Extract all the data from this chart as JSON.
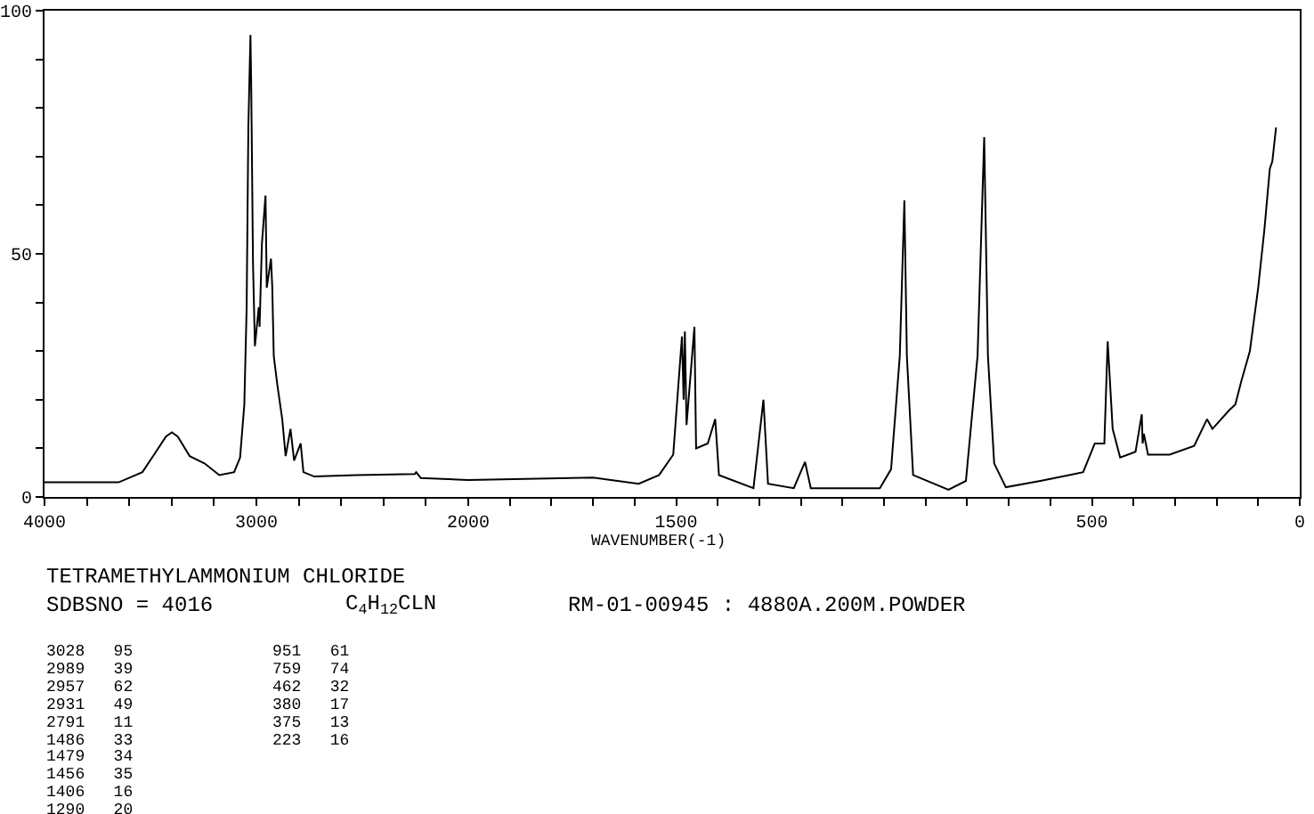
{
  "chart_data": [
    {
      "type": "line",
      "title": "TETRAMETHYLAMMONIUM CHLORIDE",
      "annotations": [
        "SDBSNO = 4016",
        "C$_{4}$H$_{12}$CLN",
        "RM-01-00945 : 4880A.200M.POWDER",
        "3028   95",
        "2989   39",
        "2957   62",
        "2931   49",
        "2791   11",
        "1486   33",
        "1479   34",
        "1456   35",
        "1406   16",
        "1290   20",
        "951   61",
        "759   74",
        "462   32",
        "380   17",
        "375   13",
        "223   16"
      ],
      "xlim": [
        4000,
        2000
      ],
      "xticks": [
        4000,
        {
          "value": 3800,
          "label": null
        },
        {
          "value": 3600,
          "label": null
        },
        {
          "value": 3400,
          "label": null
        },
        {
          "value": 3200,
          "label": null
        },
        3000,
        {
          "value": 2800,
          "label": null
        },
        {
          "value": 2600,
          "label": null
        },
        {
          "value": 2400,
          "label": null
        },
        {
          "value": 2200,
          "label": null
        },
        2000
      ],
      "ylim": [
        0,
        100
      ],
      "yticks": [
        0,
        {
          "value": 10,
          "label": null
        },
        {
          "value": 20,
          "label": null
        },
        {
          "value": 30,
          "label": null
        },
        {
          "value": 40,
          "label": null
        },
        50,
        {
          "value": 60,
          "label": null
        },
        {
          "value": 70,
          "label": null
        },
        {
          "value": 80,
          "label": null
        },
        {
          "value": 90,
          "label": null
        },
        100
      ],
      "series": [
        {
          "color": "#000000",
          "x": [
            4000,
            3650,
            3538,
            3483,
            3427,
            3399,
            3371,
            3315,
            3245,
            3175,
            3105,
            3077,
            3057,
            3046,
            3038,
            3028,
            3024,
            3016,
            3007,
            2989,
            2985,
            2974,
            2957,
            2951,
            2931,
            2925,
            2918,
            2901,
            2878,
            2862,
            2839,
            2822,
            2791,
            2778,
            2727,
            2532,
            2252,
            2246,
            2224,
            2000
          ],
          "values": [
            3.0,
            3.0,
            5.1,
            8.7,
            12.4,
            13.3,
            12.4,
            8.4,
            6.9,
            4.5,
            5.1,
            8.1,
            19,
            39,
            76,
            95,
            83,
            48,
            31,
            39,
            35,
            52,
            62,
            43,
            49,
            43,
            29,
            23,
            16,
            8.4,
            14,
            7.5,
            11,
            5.1,
            4.2,
            4.5,
            4.7,
            5.1,
            3.9,
            3.5
          ]
        }
      ]
    },
    {
      "type": "line",
      "xlabel": "WAVENUMBER(-1)",
      "tick_labels": "x",
      "xlim": [
        2000,
        0
      ],
      "xticks": [
        {
          "value": 1900,
          "label": null
        },
        {
          "value": 1800,
          "label": null
        },
        {
          "value": 1700,
          "label": null
        },
        {
          "value": 1600,
          "label": null
        },
        1500,
        {
          "value": 1400,
          "label": null
        },
        {
          "value": 1300,
          "label": null
        },
        {
          "value": 1200,
          "label": null
        },
        {
          "value": 1100,
          "label": null
        },
        {
          "value": 1000,
          "label": null
        },
        {
          "value": 900,
          "label": null
        },
        {
          "value": 800,
          "label": null
        },
        {
          "value": 700,
          "label": null
        },
        {
          "value": 600,
          "label": null
        },
        500,
        {
          "value": 400,
          "label": null
        },
        {
          "value": 300,
          "label": null
        },
        {
          "value": 200,
          "label": null
        },
        {
          "value": 100,
          "label": null
        },
        0
      ],
      "ylim": [
        0,
        100
      ],
      "series": [
        {
          "color": "#000000",
          "x": [
            2000,
            1700,
            1590,
            1541,
            1507,
            1486,
            1482,
            1479,
            1475,
            1456,
            1452,
            1424,
            1406,
            1397,
            1314,
            1290,
            1279,
            1217,
            1190,
            1176,
            1010,
            983,
            962,
            951,
            945,
            930,
            845,
            803,
            775,
            759,
            750,
            735,
            707,
            624,
            555,
            521,
            493,
            470,
            462,
            450,
            432,
            395,
            380,
            378,
            375,
            365,
            313,
            254,
            223,
            210,
            170,
            155,
            140,
            120,
            100,
            85,
            72,
            66,
            57
          ],
          "values": [
            3.5,
            4,
            2.7,
            4.5,
            8.7,
            33,
            20,
            34,
            14.8,
            35,
            10,
            11,
            16,
            4.5,
            1.8,
            20,
            2.7,
            1.8,
            7.2,
            1.8,
            1.8,
            5.7,
            29,
            61,
            29,
            4.5,
            1.5,
            3.3,
            29,
            74,
            29,
            6.9,
            2,
            3.3,
            4.5,
            5.1,
            11,
            11,
            32,
            14,
            8.1,
            9.3,
            17,
            11,
            13,
            8.7,
            8.7,
            10.5,
            16,
            14,
            17.8,
            19,
            24,
            30,
            43,
            55,
            67.5,
            69,
            76
          ]
        }
      ]
    }
  ]
}
